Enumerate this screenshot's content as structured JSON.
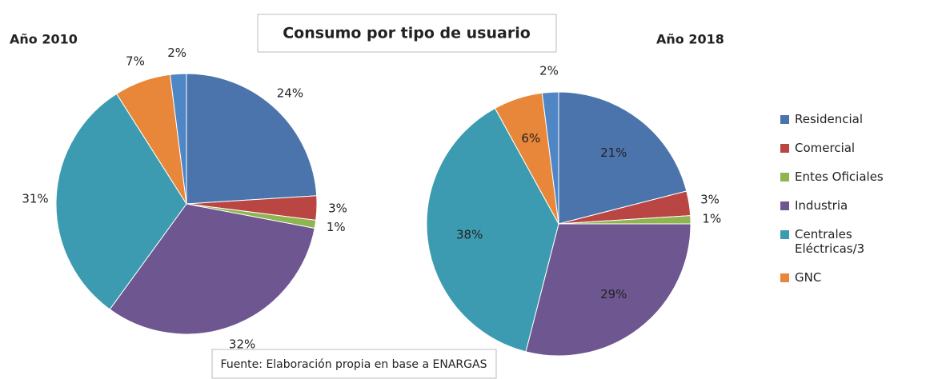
{
  "title": "Consumo por tipo de usuario",
  "source": "Fuente: Elaboración propia en base a ENARGAS",
  "chart_data": [
    {
      "type": "pie",
      "title": "Año 2010",
      "categories": [
        "Residencial",
        "Comercial",
        "Entes Oficiales",
        "Industria",
        "Centrales Eléctricas/3",
        "GNC",
        null
      ],
      "values": [
        24,
        3,
        1,
        32,
        31,
        7,
        2
      ],
      "value_labels": [
        "24%",
        "3%",
        "1%",
        "32%",
        "31%",
        "7%",
        "2%"
      ],
      "colors": [
        "#4a74ab",
        "#b94643",
        "#8fb450",
        "#6e5690",
        "#3c9bb0",
        "#e8873a",
        "#4f86c6"
      ]
    },
    {
      "type": "pie",
      "title": "Año 2018",
      "categories": [
        "Residencial",
        "Comercial",
        "Entes Oficiales",
        "Industria",
        "Centrales Eléctricas/3",
        "GNC",
        null
      ],
      "values": [
        21,
        3,
        1,
        29,
        38,
        6,
        2
      ],
      "value_labels": [
        "21%",
        "3%",
        "1%",
        "29%",
        "38%",
        "6%",
        "2%"
      ],
      "colors": [
        "#4a74ab",
        "#b94643",
        "#8fb450",
        "#6e5690",
        "#3c9bb0",
        "#e8873a",
        "#4f86c6"
      ]
    }
  ]
}
